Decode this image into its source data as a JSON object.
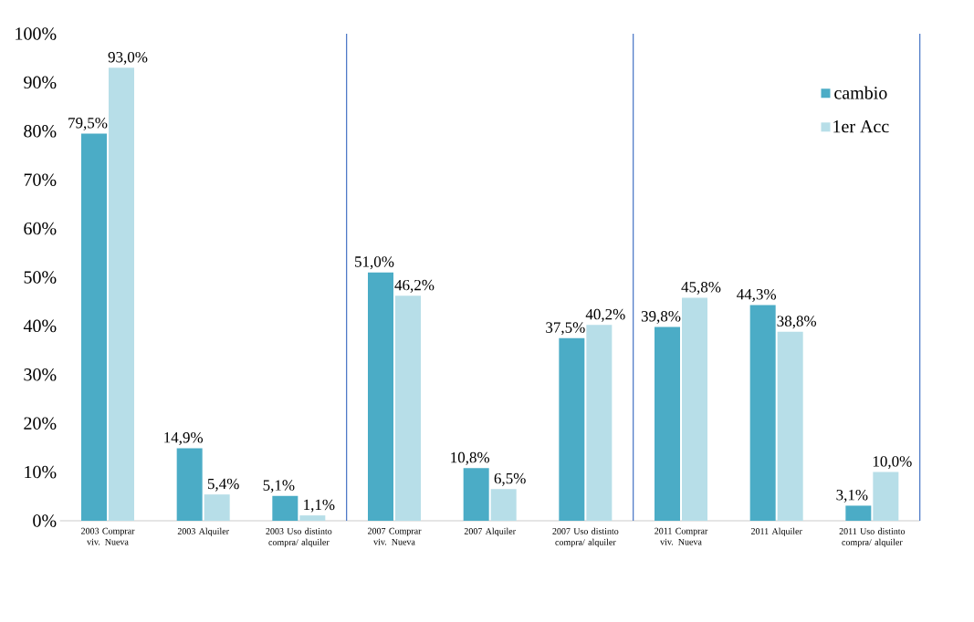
{
  "chart_data": {
    "type": "bar",
    "categories": [
      "2003 Comprar viv. Nueva",
      "2003 Alquiler",
      "2003 Uso distinto compra/ alquiler",
      "2007 Comprar viv. Nueva",
      "2007 Alquiler",
      "2007 Uso distinto compra/ alquiler",
      "2011 Comprar viv. Nueva",
      "2011 Alquiler",
      "2011 Uso distinto compra/ alquiler"
    ],
    "series": [
      {
        "name": "cambio",
        "color": "#4bacc6",
        "values": [
          79.5,
          14.9,
          5.1,
          51.0,
          10.8,
          37.5,
          39.8,
          44.3,
          3.1
        ],
        "value_labels": [
          "79,5%",
          "14,9%",
          "5,1%",
          "51,0%",
          "10,8%",
          "37,5%",
          "39,8%",
          "44,3%",
          "3,1%"
        ]
      },
      {
        "name": "1er Acc",
        "color": "#b7dee8",
        "values": [
          93.0,
          5.4,
          1.1,
          46.2,
          6.5,
          40.2,
          45.8,
          38.8,
          10.0
        ],
        "value_labels": [
          "93,0%",
          "5,4%",
          "1,1%",
          "46,2%",
          "6,5%",
          "40,2%",
          "45,8%",
          "38,8%",
          "10,0%"
        ]
      }
    ],
    "ylim": [
      0,
      100
    ],
    "yticks": [
      {
        "value": 0,
        "label": "0%"
      },
      {
        "value": 10,
        "label": "10%"
      },
      {
        "value": 20,
        "label": "20%"
      },
      {
        "value": 30,
        "label": "30%"
      },
      {
        "value": 40,
        "label": "40%"
      },
      {
        "value": 50,
        "label": "50%"
      },
      {
        "value": 60,
        "label": "60%"
      },
      {
        "value": 70,
        "label": "70%"
      },
      {
        "value": 80,
        "label": "80%"
      },
      {
        "value": 90,
        "label": "90%"
      },
      {
        "value": 100,
        "label": "100%"
      }
    ],
    "grid": false,
    "legend": "top right"
  }
}
